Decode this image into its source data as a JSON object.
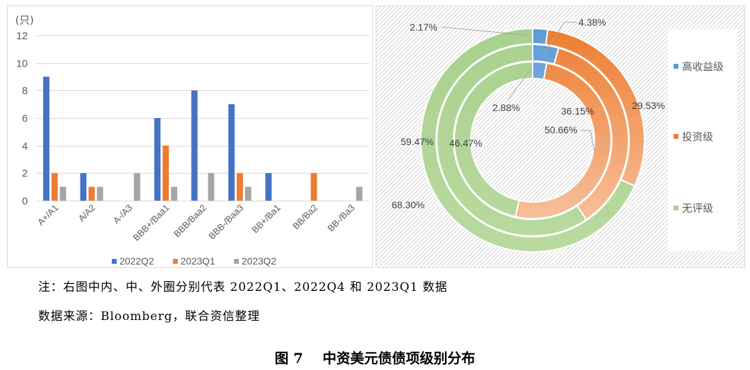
{
  "chart_data": [
    {
      "type": "bar",
      "title": "",
      "xlabel": "",
      "ylabel": "(只)",
      "ylim": [
        0,
        12
      ],
      "yticks": [
        0,
        2,
        4,
        6,
        8,
        10,
        12
      ],
      "grid": true,
      "legend": "bottom",
      "categories": [
        "A+/A1",
        "A/A2",
        "A-/A3",
        "BBB+/Baa1",
        "BBB/Baa2",
        "BBB-/Baa3",
        "BB+/Ba1",
        "BB/Ba2",
        "BB-/Ba3"
      ],
      "series": [
        {
          "name": "2022Q2",
          "color": "#4472C4",
          "values": [
            9,
            2,
            0,
            6,
            8,
            7,
            2,
            0,
            0
          ]
        },
        {
          "name": "2023Q1",
          "color": "#ED7D31",
          "values": [
            2,
            1,
            0,
            4,
            0,
            2,
            0,
            2,
            0
          ]
        },
        {
          "name": "2023Q2",
          "color": "#A5A5A5",
          "values": [
            1,
            1,
            2,
            1,
            2,
            1,
            0,
            0,
            1
          ]
        }
      ]
    },
    {
      "type": "pie",
      "legend": "right",
      "categories": [
        "高收益级",
        "投资级",
        "无评级"
      ],
      "colors": [
        "#5B9BD5",
        "#ED7D31",
        "#A9D18E"
      ],
      "colors_light": [
        "#BDD7EE",
        "#F8CBAD",
        "#B9DA9F"
      ],
      "rings": [
        {
          "values": [
            2.88,
            50.66,
            46.47
          ],
          "labels": [
            "2.88%",
            "50.66%",
            "46.47%"
          ]
        },
        {
          "values": [
            4.38,
            36.15,
            59.47
          ],
          "labels": [
            "4.38%",
            "36.15%",
            "59.47%"
          ]
        },
        {
          "values": [
            2.17,
            29.53,
            68.3
          ],
          "labels": [
            "2.17%",
            "29.53%",
            "68.30%"
          ]
        }
      ]
    }
  ],
  "note": "注：右图中内、中、外圈分别代表 2022Q1、2022Q4 和 2023Q1 数据",
  "source": "数据来源：Bloomberg，联合资信整理",
  "caption": {
    "number": "图 7",
    "title": "中资美元债债项级别分布"
  }
}
